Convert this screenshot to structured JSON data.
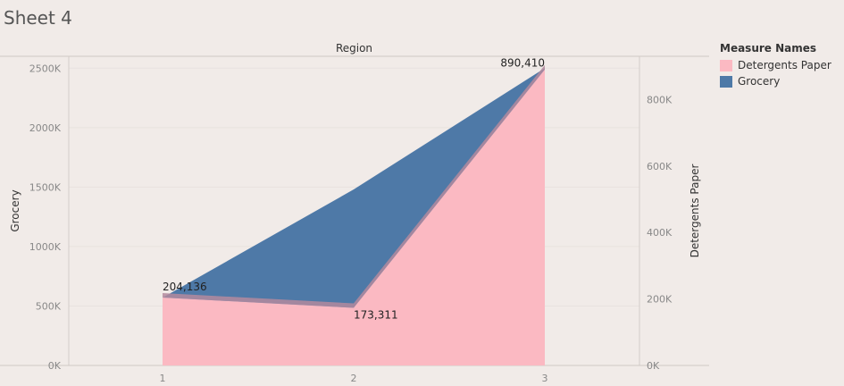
{
  "sheet": {
    "title": "Sheet 4"
  },
  "chart_data": {
    "type": "area",
    "x_header": "Region",
    "categories": [
      "1",
      "2",
      "3"
    ],
    "x_tick_labels": [
      "1",
      "2",
      "3"
    ],
    "series": [
      {
        "name": "Detergents Paper",
        "axis": "right",
        "values": [
          204136,
          173311,
          890410
        ],
        "color": "#fbb9c2",
        "data_labels": [
          "204,136",
          "173,311",
          "890,410"
        ]
      },
      {
        "name": "Grocery",
        "axis": "left",
        "values": [
          570000,
          1480000,
          2500000
        ],
        "color": "#4e79a7"
      }
    ],
    "left_axis": {
      "label": "Grocery",
      "ylim": [
        0,
        2600000
      ],
      "ticks": [
        0,
        500000,
        1000000,
        1500000,
        2000000,
        2500000
      ],
      "tick_labels": [
        "0K",
        "500K",
        "1000K",
        "1500K",
        "2000K",
        "2500K"
      ]
    },
    "right_axis": {
      "label": "Detergents Paper",
      "ylim": [
        0,
        930000
      ],
      "ticks": [
        0,
        200000,
        400000,
        600000,
        800000
      ],
      "tick_labels": [
        "0K",
        "200K",
        "400K",
        "600K",
        "800K"
      ]
    },
    "grid": true,
    "legend": {
      "title": "Measure Names",
      "placement": "right"
    }
  }
}
